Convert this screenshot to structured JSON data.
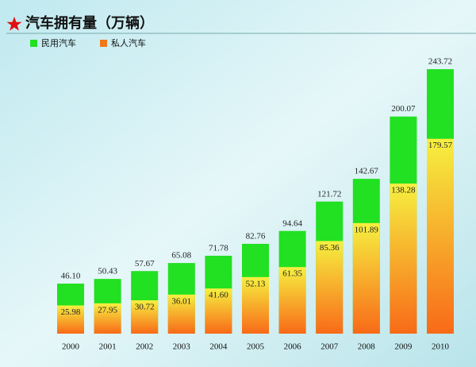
{
  "chart_data": {
    "type": "bar",
    "title": "汽车拥有量（万辆）",
    "categories": [
      "2000",
      "2001",
      "2002",
      "2003",
      "2004",
      "2005",
      "2006",
      "2007",
      "2008",
      "2009",
      "2010"
    ],
    "series": [
      {
        "name": "民用汽车",
        "color": "#22e022",
        "values": [
          46.1,
          50.43,
          57.67,
          65.08,
          71.78,
          82.76,
          94.64,
          121.72,
          142.67,
          200.07,
          243.72
        ],
        "value_labels": [
          "46.10",
          "50.43",
          "57.67",
          "65.08",
          "71.78",
          "82.76",
          "94.64",
          "121.72",
          "142.67",
          "200.07",
          "243.72"
        ]
      },
      {
        "name": "私人汽车",
        "color": "#f07818",
        "values": [
          25.98,
          27.95,
          30.72,
          36.01,
          41.6,
          52.13,
          61.35,
          85.36,
          101.89,
          138.28,
          179.57
        ],
        "value_labels": [
          "25.98",
          "27.95",
          "30.72",
          "36.01",
          "41.60",
          "52.13",
          "61.35",
          "85.36",
          "101.89",
          "138.28",
          "179.57"
        ]
      }
    ]
  }
}
